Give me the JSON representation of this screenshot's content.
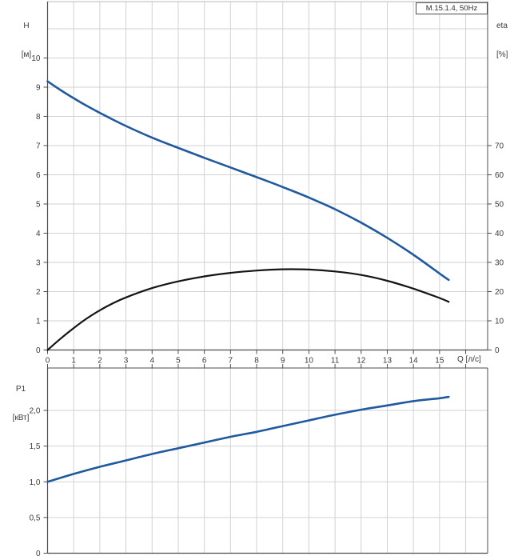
{
  "model_label": "M.15.1.4, 50Hz",
  "colors": {
    "curve_blue": "#205a9e",
    "curve_black": "#141414",
    "grid": "#d2d2d2",
    "axis": "#4d4d4d",
    "frame_light": "#b8b8b8",
    "text": "#3a3a3a",
    "background": "#ffffff"
  },
  "chart_data": [
    {
      "type": "line",
      "title": "Pump performance curve (head and efficiency vs flow)",
      "xlabel": "Q [л/с]",
      "ylabel_left_1": "H",
      "ylabel_left_2": "[м]",
      "ylabel_right_1": "eta",
      "ylabel_right_2": "[%]",
      "xlim": [
        0,
        16.84
      ],
      "ylim_left": [
        0,
        11.93
      ],
      "ylim_right": [
        0,
        119.3
      ],
      "grid": true,
      "x_grid": [
        1,
        2,
        3,
        4,
        5,
        6,
        7,
        8,
        9,
        10,
        11,
        12,
        13,
        14,
        15,
        16
      ],
      "y_grid": [
        1,
        2,
        3,
        4,
        5,
        6,
        7,
        8,
        9,
        10,
        11
      ],
      "x_tick_side": "bottom",
      "x_tick_values": [
        0,
        1,
        2,
        3,
        4,
        5,
        6,
        7,
        8,
        9,
        10,
        11,
        12,
        13,
        14,
        15,
        16
      ],
      "x_tick_labels": [
        "0",
        "1",
        "2",
        "3",
        "4",
        "5",
        "6",
        "7",
        "8",
        "9",
        "10",
        "11",
        "12",
        "13",
        "14",
        "15",
        ""
      ],
      "y_left_ticks": {
        "values": [
          0,
          1,
          2,
          3,
          4,
          5,
          6,
          7,
          8,
          9,
          10
        ],
        "labels": [
          "0",
          "1",
          "2",
          "3",
          "4",
          "5",
          "6",
          "7",
          "8",
          "9",
          "10"
        ]
      },
      "y_right_ticks": {
        "values": [
          0,
          10,
          20,
          30,
          40,
          50,
          60,
          70
        ],
        "labels": [
          "0",
          "10",
          "20",
          "30",
          "40",
          "50",
          "60",
          "70"
        ]
      },
      "series": [
        {
          "name": "H",
          "axis": "left",
          "color": "#205a9e",
          "width": 2.6,
          "x": [
            0,
            0.5,
            1,
            1.5,
            2,
            2.5,
            3,
            4,
            5,
            6,
            7,
            8,
            9,
            10,
            11,
            12,
            13,
            14,
            15,
            15.35
          ],
          "y": [
            9.2,
            8.9,
            8.62,
            8.36,
            8.12,
            7.89,
            7.67,
            7.27,
            6.92,
            6.58,
            6.25,
            5.92,
            5.58,
            5.22,
            4.82,
            4.36,
            3.84,
            3.26,
            2.62,
            2.4
          ]
        },
        {
          "name": "eta",
          "axis": "right",
          "color": "#141414",
          "width": 2.2,
          "x": [
            0,
            0.5,
            1,
            1.5,
            2,
            2.5,
            3,
            4,
            5,
            6,
            7,
            8,
            9,
            10,
            11,
            12,
            13,
            14,
            15,
            15.35
          ],
          "y": [
            0,
            3.9,
            7.5,
            10.8,
            13.6,
            16.0,
            18.0,
            21.2,
            23.5,
            25.2,
            26.4,
            27.2,
            27.65,
            27.55,
            26.9,
            25.7,
            23.7,
            21.0,
            17.8,
            16.5
          ]
        }
      ]
    },
    {
      "type": "line",
      "title": "Power input vs flow",
      "xlabel": "",
      "ylabel_left_1": "P1",
      "ylabel_left_2": "[кВт]",
      "xlim": [
        0,
        16.84
      ],
      "ylim_left": [
        0,
        2.594
      ],
      "grid": true,
      "x_grid": [
        1,
        2,
        3,
        4,
        5,
        6,
        7,
        8,
        9,
        10,
        11,
        12,
        13,
        14,
        15,
        16
      ],
      "y_grid": [
        0.5,
        1,
        1.5,
        2
      ],
      "x_tick_side": "top",
      "x_tick_values": [
        0,
        1,
        2,
        3,
        4,
        5,
        6,
        7,
        8,
        9,
        10,
        11,
        12,
        13,
        14,
        15,
        16
      ],
      "x_tick_labels": null,
      "y_left_ticks": {
        "values": [
          0,
          0.5,
          1,
          1.5,
          2
        ],
        "labels": [
          "0",
          "0,5",
          "1,0",
          "1,5",
          "2,0"
        ]
      },
      "series": [
        {
          "name": "P1",
          "axis": "left",
          "color": "#205a9e",
          "width": 2.6,
          "x": [
            0,
            1,
            2,
            3,
            4,
            5,
            6,
            7,
            8,
            9,
            10,
            11,
            12,
            13,
            14,
            15,
            15.35
          ],
          "y": [
            1.0,
            1.11,
            1.21,
            1.3,
            1.39,
            1.47,
            1.55,
            1.63,
            1.7,
            1.78,
            1.86,
            1.94,
            2.01,
            2.07,
            2.13,
            2.17,
            2.19
          ]
        }
      ]
    }
  ]
}
